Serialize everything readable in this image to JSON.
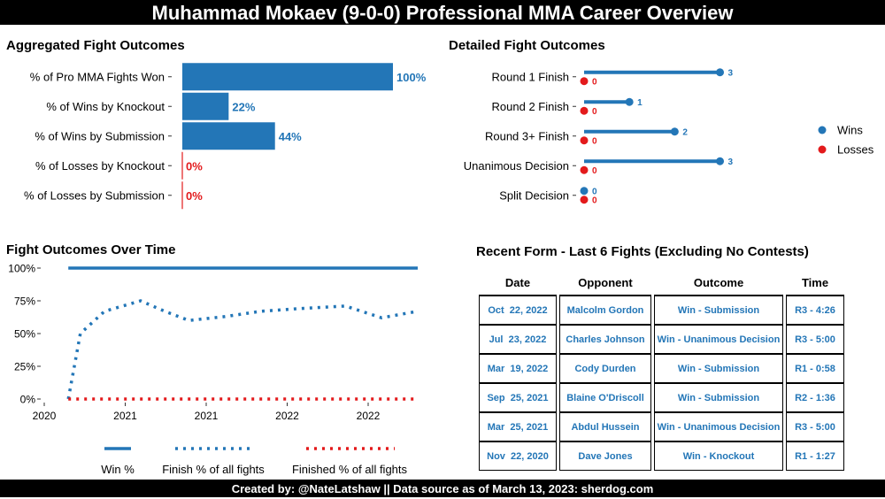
{
  "header": {
    "title": "Muhammad Mokaev (9-0-0) Professional MMA Career Overview"
  },
  "footer": {
    "text": "Created by: @NateLatshaw || Data source as of March 13, 2023: sherdog.com"
  },
  "colors": {
    "win": "#2376b7",
    "loss": "#e31a1c",
    "banner": "#000000"
  },
  "panels": {
    "aggregated": {
      "title": "Aggregated Fight Outcomes"
    },
    "detailed": {
      "title": "Detailed Fight Outcomes"
    },
    "time": {
      "title": "Fight Outcomes Over Time"
    },
    "recent": {
      "title": "Recent Form - Last 6 Fights (Excluding No Contests)"
    }
  },
  "chart_data": [
    {
      "type": "bar",
      "orientation": "horizontal",
      "title": "Aggregated Fight Outcomes",
      "categories": [
        "% of Pro MMA Fights Won",
        "% of Wins by Knockout",
        "% of Wins by Submission",
        "% of Losses by Knockout",
        "% of Losses by Submission"
      ],
      "values": [
        100,
        22,
        44,
        0,
        0
      ],
      "labels": [
        "100%",
        "22%",
        "44%",
        "0%",
        "0%"
      ],
      "colors": [
        "#2376b7",
        "#2376b7",
        "#2376b7",
        "#e31a1c",
        "#e31a1c"
      ],
      "xlim": [
        0,
        100
      ]
    },
    {
      "type": "scatter",
      "subtype": "lollipop",
      "title": "Detailed Fight Outcomes",
      "categories": [
        "Round 1 Finish",
        "Round 2 Finish",
        "Round 3+ Finish",
        "Unanimous Decision",
        "Split Decision"
      ],
      "series": [
        {
          "name": "Wins",
          "color": "#2376b7",
          "values": [
            3,
            1,
            2,
            3,
            0
          ]
        },
        {
          "name": "Losses",
          "color": "#e31a1c",
          "values": [
            0,
            0,
            0,
            0,
            0
          ]
        }
      ],
      "xlim": [
        0,
        3.4
      ],
      "legend": "right"
    },
    {
      "type": "line",
      "title": "Fight Outcomes Over Time",
      "x_ticks": [
        "2020",
        "2021",
        "2021",
        "2022",
        "2022"
      ],
      "y_ticks": [
        "100%",
        "75%",
        "50%",
        "25%",
        "0%"
      ],
      "ylim": [
        0,
        100
      ],
      "xlim": [
        2020.0,
        2023.1
      ],
      "legend": "bottom",
      "series": [
        {
          "name": "Win %",
          "style": "solid",
          "color": "#2376b7",
          "x": [
            2020.2,
            2023.1
          ],
          "values": [
            100,
            100
          ]
        },
        {
          "name": "Finish % of all fights",
          "style": "dotted",
          "color": "#2376b7",
          "x": [
            2020.2,
            2020.3,
            2020.5,
            2020.8,
            2021.0,
            2021.2,
            2021.5,
            2021.8,
            2022.1,
            2022.5,
            2022.8,
            2023.1
          ],
          "values": [
            0,
            50,
            67,
            75,
            67,
            60,
            63,
            67,
            69,
            71,
            62,
            67
          ]
        },
        {
          "name": "Finished % of all fights",
          "style": "dotted",
          "color": "#e31a1c",
          "x": [
            2020.2,
            2023.1
          ],
          "values": [
            0,
            0
          ]
        }
      ]
    },
    {
      "type": "table",
      "title": "Recent Form - Last 6 Fights (Excluding No Contests)",
      "columns": [
        "Date",
        "Opponent",
        "Outcome",
        "Time"
      ],
      "rows": [
        [
          "Oct  22, 2022",
          "Malcolm Gordon",
          "Win - Submission",
          "R3 - 4:26"
        ],
        [
          "Jul  23, 2022",
          "Charles Johnson",
          "Win - Unanimous Decision",
          "R3 - 5:00"
        ],
        [
          "Mar  19, 2022",
          "Cody Durden",
          "Win - Submission",
          "R1 - 0:58"
        ],
        [
          "Sep  25, 2021",
          "Blaine O'Driscoll",
          "Win - Submission",
          "R2 - 1:36"
        ],
        [
          "Mar  25, 2021",
          "Abdul Hussein",
          "Win - Unanimous Decision",
          "R3 - 5:00"
        ],
        [
          "Nov  22, 2020",
          "Dave Jones",
          "Win - Knockout",
          "R1 - 1:27"
        ]
      ]
    }
  ]
}
